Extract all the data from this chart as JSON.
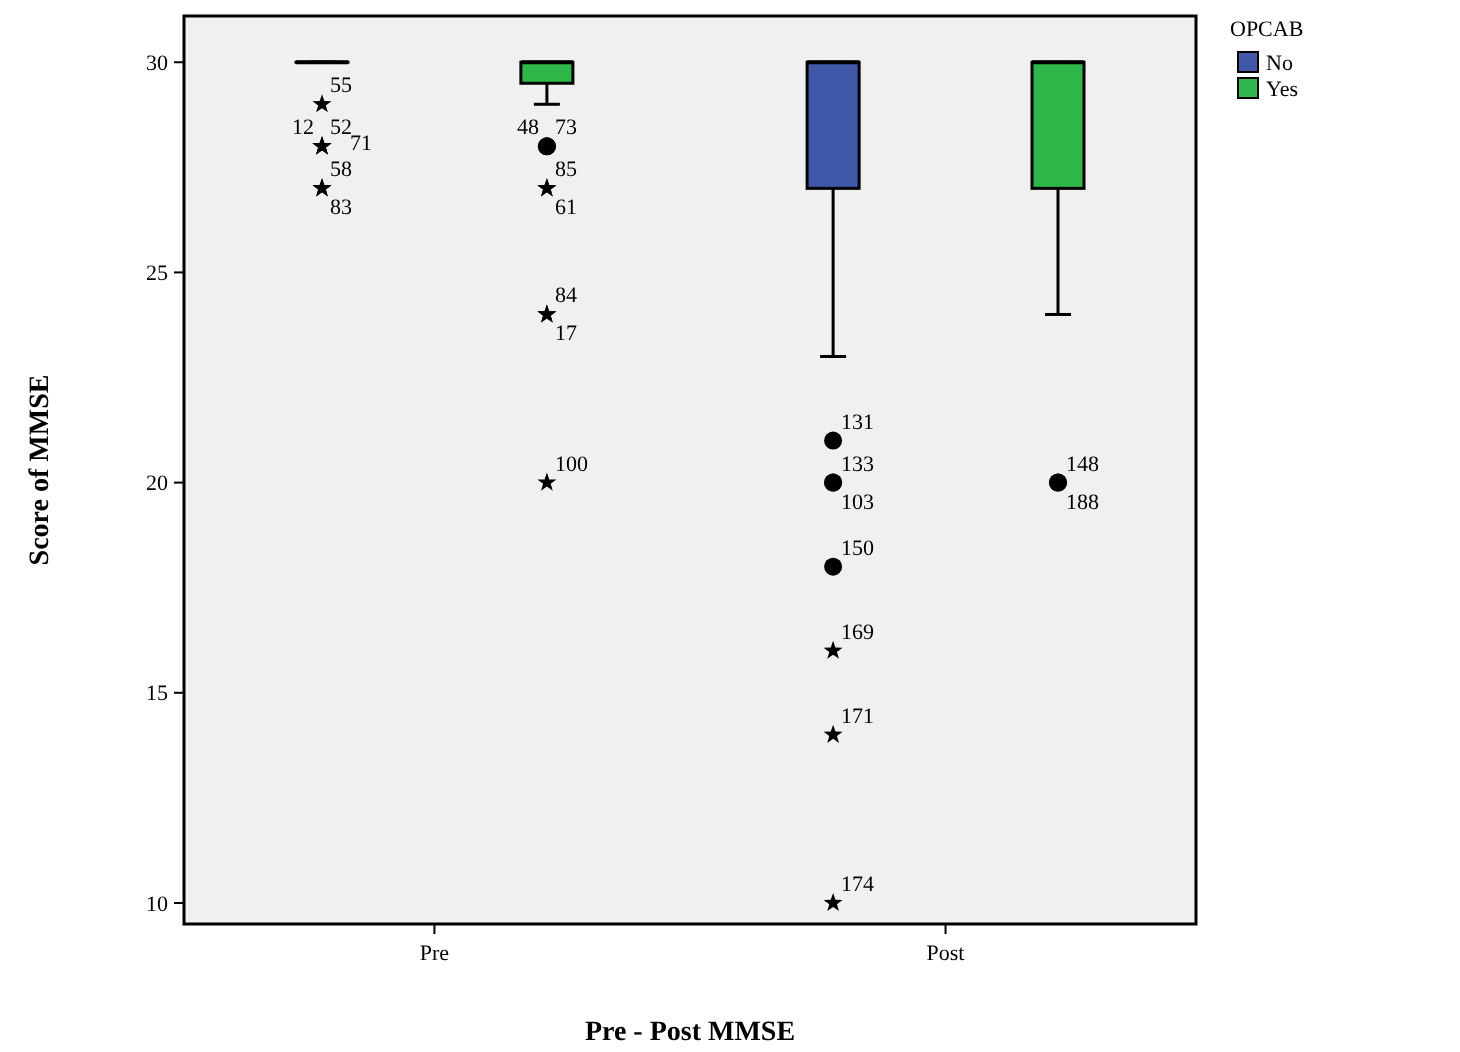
{
  "chart_data": {
    "type": "box",
    "xlabel": "Pre - Post MMSE",
    "ylabel": "Score of MMSE",
    "legend_title": "OPCAB",
    "legend": "top right",
    "categories": [
      "Pre",
      "Post"
    ],
    "ylim": [
      9.5,
      31.1
    ],
    "yticks": [
      10,
      15,
      20,
      25,
      30
    ],
    "series": [
      {
        "name": "No",
        "color": "#3f58a8",
        "boxes": [
          {
            "low": 30,
            "q1": 30,
            "median": 30,
            "q3": 30,
            "high": 30,
            "outliers": [
              29,
              28,
              28,
              28,
              27,
              27
            ]
          },
          {
            "low": 23,
            "q1": 27,
            "median": 30,
            "q3": 30,
            "high": 30,
            "outliers": [
              21,
              20,
              20,
              18,
              16,
              14,
              10
            ]
          }
        ]
      },
      {
        "name": "Yes",
        "color": "#2fb84a",
        "boxes": [
          {
            "low": 29,
            "q1": 29.5,
            "median": 30,
            "q3": 30,
            "high": 30,
            "outliers": [
              28,
              28,
              27,
              27,
              24,
              24,
              20
            ]
          },
          {
            "low": 24,
            "q1": 27,
            "median": 30,
            "q3": 30,
            "high": 30,
            "outliers": [
              20,
              20
            ]
          }
        ]
      }
    ],
    "annotations": [
      "55",
      "12",
      "52",
      "71",
      "58",
      "83",
      "131",
      "133",
      "103",
      "150",
      "169",
      "171",
      "174",
      "48",
      "73",
      "85",
      "61",
      "84",
      "17",
      "100",
      "148",
      "188"
    ]
  }
}
